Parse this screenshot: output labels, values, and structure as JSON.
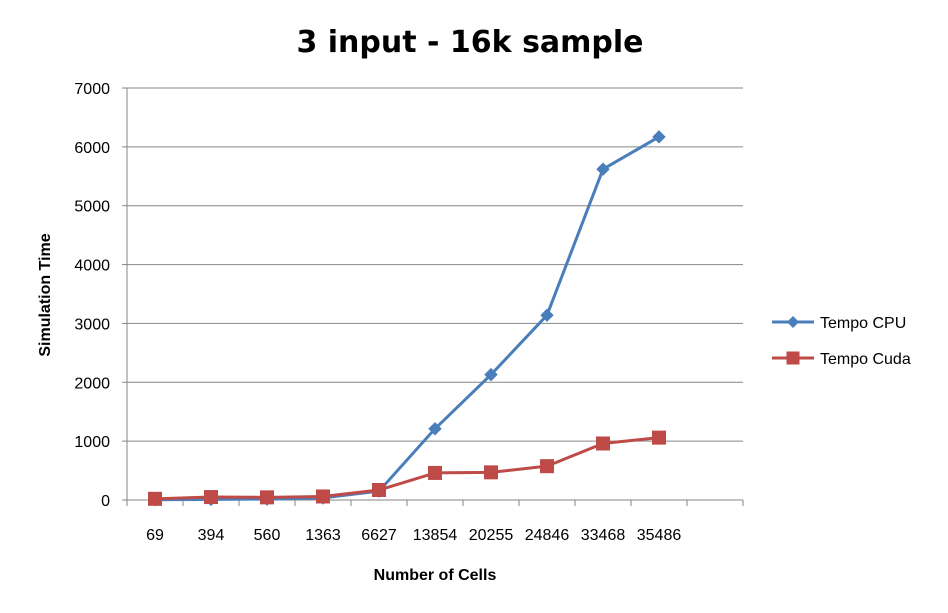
{
  "chart_data": {
    "type": "line",
    "title": "3 input - 16k sample",
    "xlabel": "Number of Cells",
    "ylabel": "Simulation Time",
    "categories": [
      "69",
      "394",
      "560",
      "1363",
      "6627",
      "13854",
      "20255",
      "24846",
      "33468",
      "35486"
    ],
    "ylim": [
      0,
      7000
    ],
    "yticks": [
      0,
      1000,
      2000,
      3000,
      4000,
      5000,
      6000,
      7000
    ],
    "grid": true,
    "legend": "right",
    "series": [
      {
        "name": "Tempo CPU",
        "color": "#4a7ebb",
        "marker": "diamond",
        "values": [
          5,
          10,
          15,
          35,
          150,
          1210,
          2130,
          3140,
          5620,
          6170
        ]
      },
      {
        "name": "Tempo Cuda",
        "color": "#be4b48",
        "marker": "square",
        "values": [
          20,
          50,
          45,
          60,
          170,
          460,
          470,
          575,
          960,
          1060
        ]
      }
    ]
  }
}
